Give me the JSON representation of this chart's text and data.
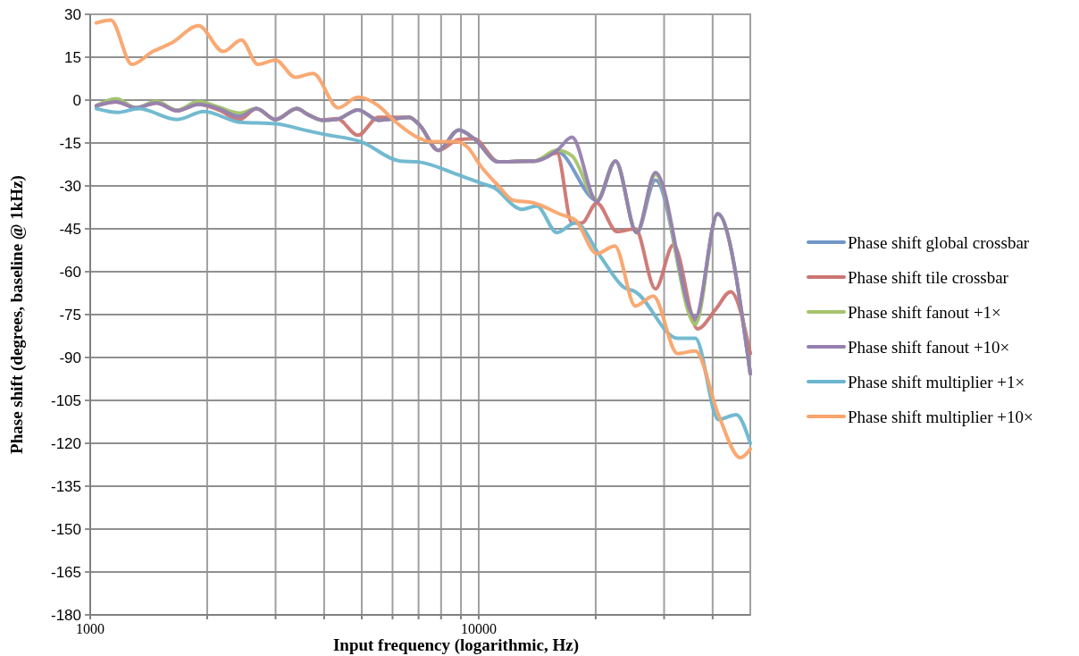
{
  "chart_data": {
    "type": "line",
    "xlabel": "Input frequency (logarithmic, Hz)",
    "ylabel": "Phase shift (degrees, baseline @ 1kHz)",
    "log": "x",
    "grid": true,
    "legend": "right",
    "line_style": "solid",
    "xlim": [
      1000,
      50000
    ],
    "ylim": [
      -180,
      30
    ],
    "xticks": [
      1000,
      {
        "value": 2000,
        "label": null
      },
      {
        "value": 3000,
        "label": null
      },
      {
        "value": 4000,
        "label": null
      },
      {
        "value": 5000,
        "label": null
      },
      {
        "value": 6000,
        "label": null
      },
      {
        "value": 7000,
        "label": null
      },
      {
        "value": 8000,
        "label": null
      },
      {
        "value": 9000,
        "label": null
      },
      10000,
      {
        "value": 20000,
        "label": null
      },
      {
        "value": 30000,
        "label": null
      },
      {
        "value": 40000,
        "label": null
      }
    ],
    "yticks": [
      30,
      15,
      0,
      -15,
      -30,
      -45,
      -60,
      -75,
      -90,
      -105,
      -120,
      -135,
      -150,
      -165,
      -180
    ],
    "series": [
      {
        "name": "Phase shift global crossbar",
        "color": "#7096c8",
        "x": [
          1037,
          1166,
          1311,
          1480,
          1672,
          1900,
          2145,
          2420,
          2680,
          3000,
          3400,
          3650,
          3950,
          4320,
          4886,
          5520,
          6620,
          7070,
          7870,
          8880,
          9730,
          11240,
          13400,
          13900,
          15900,
          20140,
          22500,
          25500,
          28500,
          36100,
          41200,
          50000
        ],
        "values": [
          -2,
          0.3,
          -2.7,
          -0.6,
          -3.7,
          -0.6,
          -3,
          -5,
          -3,
          -6.8,
          -3,
          -5.2,
          -7,
          -6.7,
          -3.4,
          -7,
          -6,
          -9,
          -17.6,
          -10.5,
          -13.5,
          -21.6,
          -21.3,
          -21.3,
          -18,
          -35,
          -21.3,
          -46.3,
          -28,
          -77,
          -39.8,
          -95.7
        ]
      },
      {
        "name": "Phase shift tile crossbar",
        "color": "#cc7571",
        "x": [
          1037,
          1166,
          1311,
          1480,
          1672,
          1900,
          2145,
          2420,
          2680,
          3000,
          3400,
          3650,
          3950,
          4320,
          4886,
          5520,
          6620,
          7070,
          7870,
          8880,
          9730,
          11240,
          13400,
          13900,
          15900,
          17380,
          18400,
          20140,
          22700,
          25300,
          28500,
          31700,
          36600,
          40800,
          44500,
          50000
        ],
        "values": [
          -2,
          -0.6,
          -2.7,
          -1,
          -3.7,
          -1.5,
          -3.5,
          -6.8,
          -3,
          -6.8,
          -3,
          -5.2,
          -7,
          -6.5,
          -12.3,
          -6,
          -6,
          -9,
          -17.6,
          -13.8,
          -13.5,
          -21.6,
          -21.3,
          -21.3,
          -18.5,
          -43,
          -43,
          -36,
          -46,
          -45,
          -66,
          -50.6,
          -80,
          -73,
          -67,
          -88.6
        ]
      },
      {
        "name": "Phase shift fanout +1×",
        "color": "#a4c46c",
        "x": [
          1037,
          1166,
          1311,
          1480,
          1672,
          1900,
          2145,
          2420,
          2680,
          3000,
          3400,
          3650,
          3950,
          4320,
          4886,
          5520,
          6620,
          7070,
          7870,
          8880,
          9730,
          11240,
          13400,
          13900,
          15900,
          17380,
          20140,
          22500,
          25500,
          28500,
          36100,
          41200,
          50000
        ],
        "values": [
          -2,
          0.5,
          -2.7,
          -0.5,
          -3.5,
          -0.5,
          -2.5,
          -4.5,
          -3,
          -6.8,
          -3,
          -5.2,
          -7,
          -6.7,
          -3.4,
          -7,
          -6,
          -9,
          -17.6,
          -10.5,
          -13.5,
          -21.6,
          -21.3,
          -21.3,
          -17.5,
          -19.5,
          -35,
          -21.3,
          -46.3,
          -26,
          -78.4,
          -39.8,
          -95.7
        ]
      },
      {
        "name": "Phase shift fanout +10×",
        "color": "#9680b0",
        "x": [
          1037,
          1166,
          1311,
          1480,
          1672,
          1900,
          2145,
          2420,
          2680,
          3000,
          3400,
          3650,
          3950,
          4320,
          4886,
          5520,
          6620,
          7070,
          7870,
          8880,
          9730,
          11240,
          13400,
          13900,
          15900,
          17380,
          20140,
          22500,
          25500,
          28500,
          36100,
          41200,
          50000
        ],
        "values": [
          -2,
          -0.6,
          -2.7,
          -1,
          -3.7,
          -1.5,
          -3,
          -5.8,
          -3,
          -6.8,
          -3,
          -5.2,
          -7,
          -6.7,
          -3.4,
          -7,
          -6,
          -9,
          -17.6,
          -10.5,
          -13.5,
          -21.6,
          -21.3,
          -21.3,
          -17.6,
          -13,
          -35.5,
          -21.3,
          -46.3,
          -25.3,
          -76,
          -39.8,
          -95.7
        ]
      },
      {
        "name": "Phase shift multiplier +1×",
        "color": "#6cb6cf",
        "x": [
          1037,
          1179,
          1331,
          1672,
          1963,
          2420,
          3000,
          3650,
          4010,
          4966,
          6270,
          6980,
          8760,
          10110,
          11000,
          12530,
          12900,
          14100,
          15900,
          17740,
          20550,
          23600,
          25300,
          32480,
          36100,
          41400,
          46000,
          50000
        ],
        "values": [
          -3,
          -4.3,
          -3,
          -6.8,
          -4,
          -7.7,
          -8.3,
          -10.8,
          -12,
          -14.5,
          -21.3,
          -21.6,
          -25.9,
          -29,
          -30.8,
          -37.6,
          -38.2,
          -37,
          -46.3,
          -42.9,
          -54.6,
          -65.4,
          -67,
          -83.3,
          -83.3,
          -111.7,
          -110,
          -120
        ]
      },
      {
        "name": "Phase shift multiplier +10×",
        "color": "#f9a46c",
        "x": [
          1037,
          1130,
          1280,
          1450,
          1620,
          1900,
          2200,
          2450,
          2700,
          3000,
          3370,
          3748,
          4350,
          4886,
          5520,
          6040,
          7080,
          7470,
          8760,
          9380,
          10110,
          11240,
          12240,
          13900,
          16290,
          17740,
          20140,
          22400,
          25300,
          28130,
          32480,
          36100,
          41400,
          47100,
          50000
        ],
        "values": [
          27,
          28,
          12.5,
          17,
          20,
          26,
          17,
          21,
          12.5,
          14,
          8,
          9.3,
          -2.7,
          1,
          -2,
          -7,
          -13.5,
          -14.5,
          -14.5,
          -16.6,
          -23,
          -30,
          -35,
          -36,
          -40,
          -42,
          -53.7,
          -51,
          -72,
          -68.5,
          -88.6,
          -87.7,
          -110,
          -125,
          -122
        ]
      }
    ]
  }
}
